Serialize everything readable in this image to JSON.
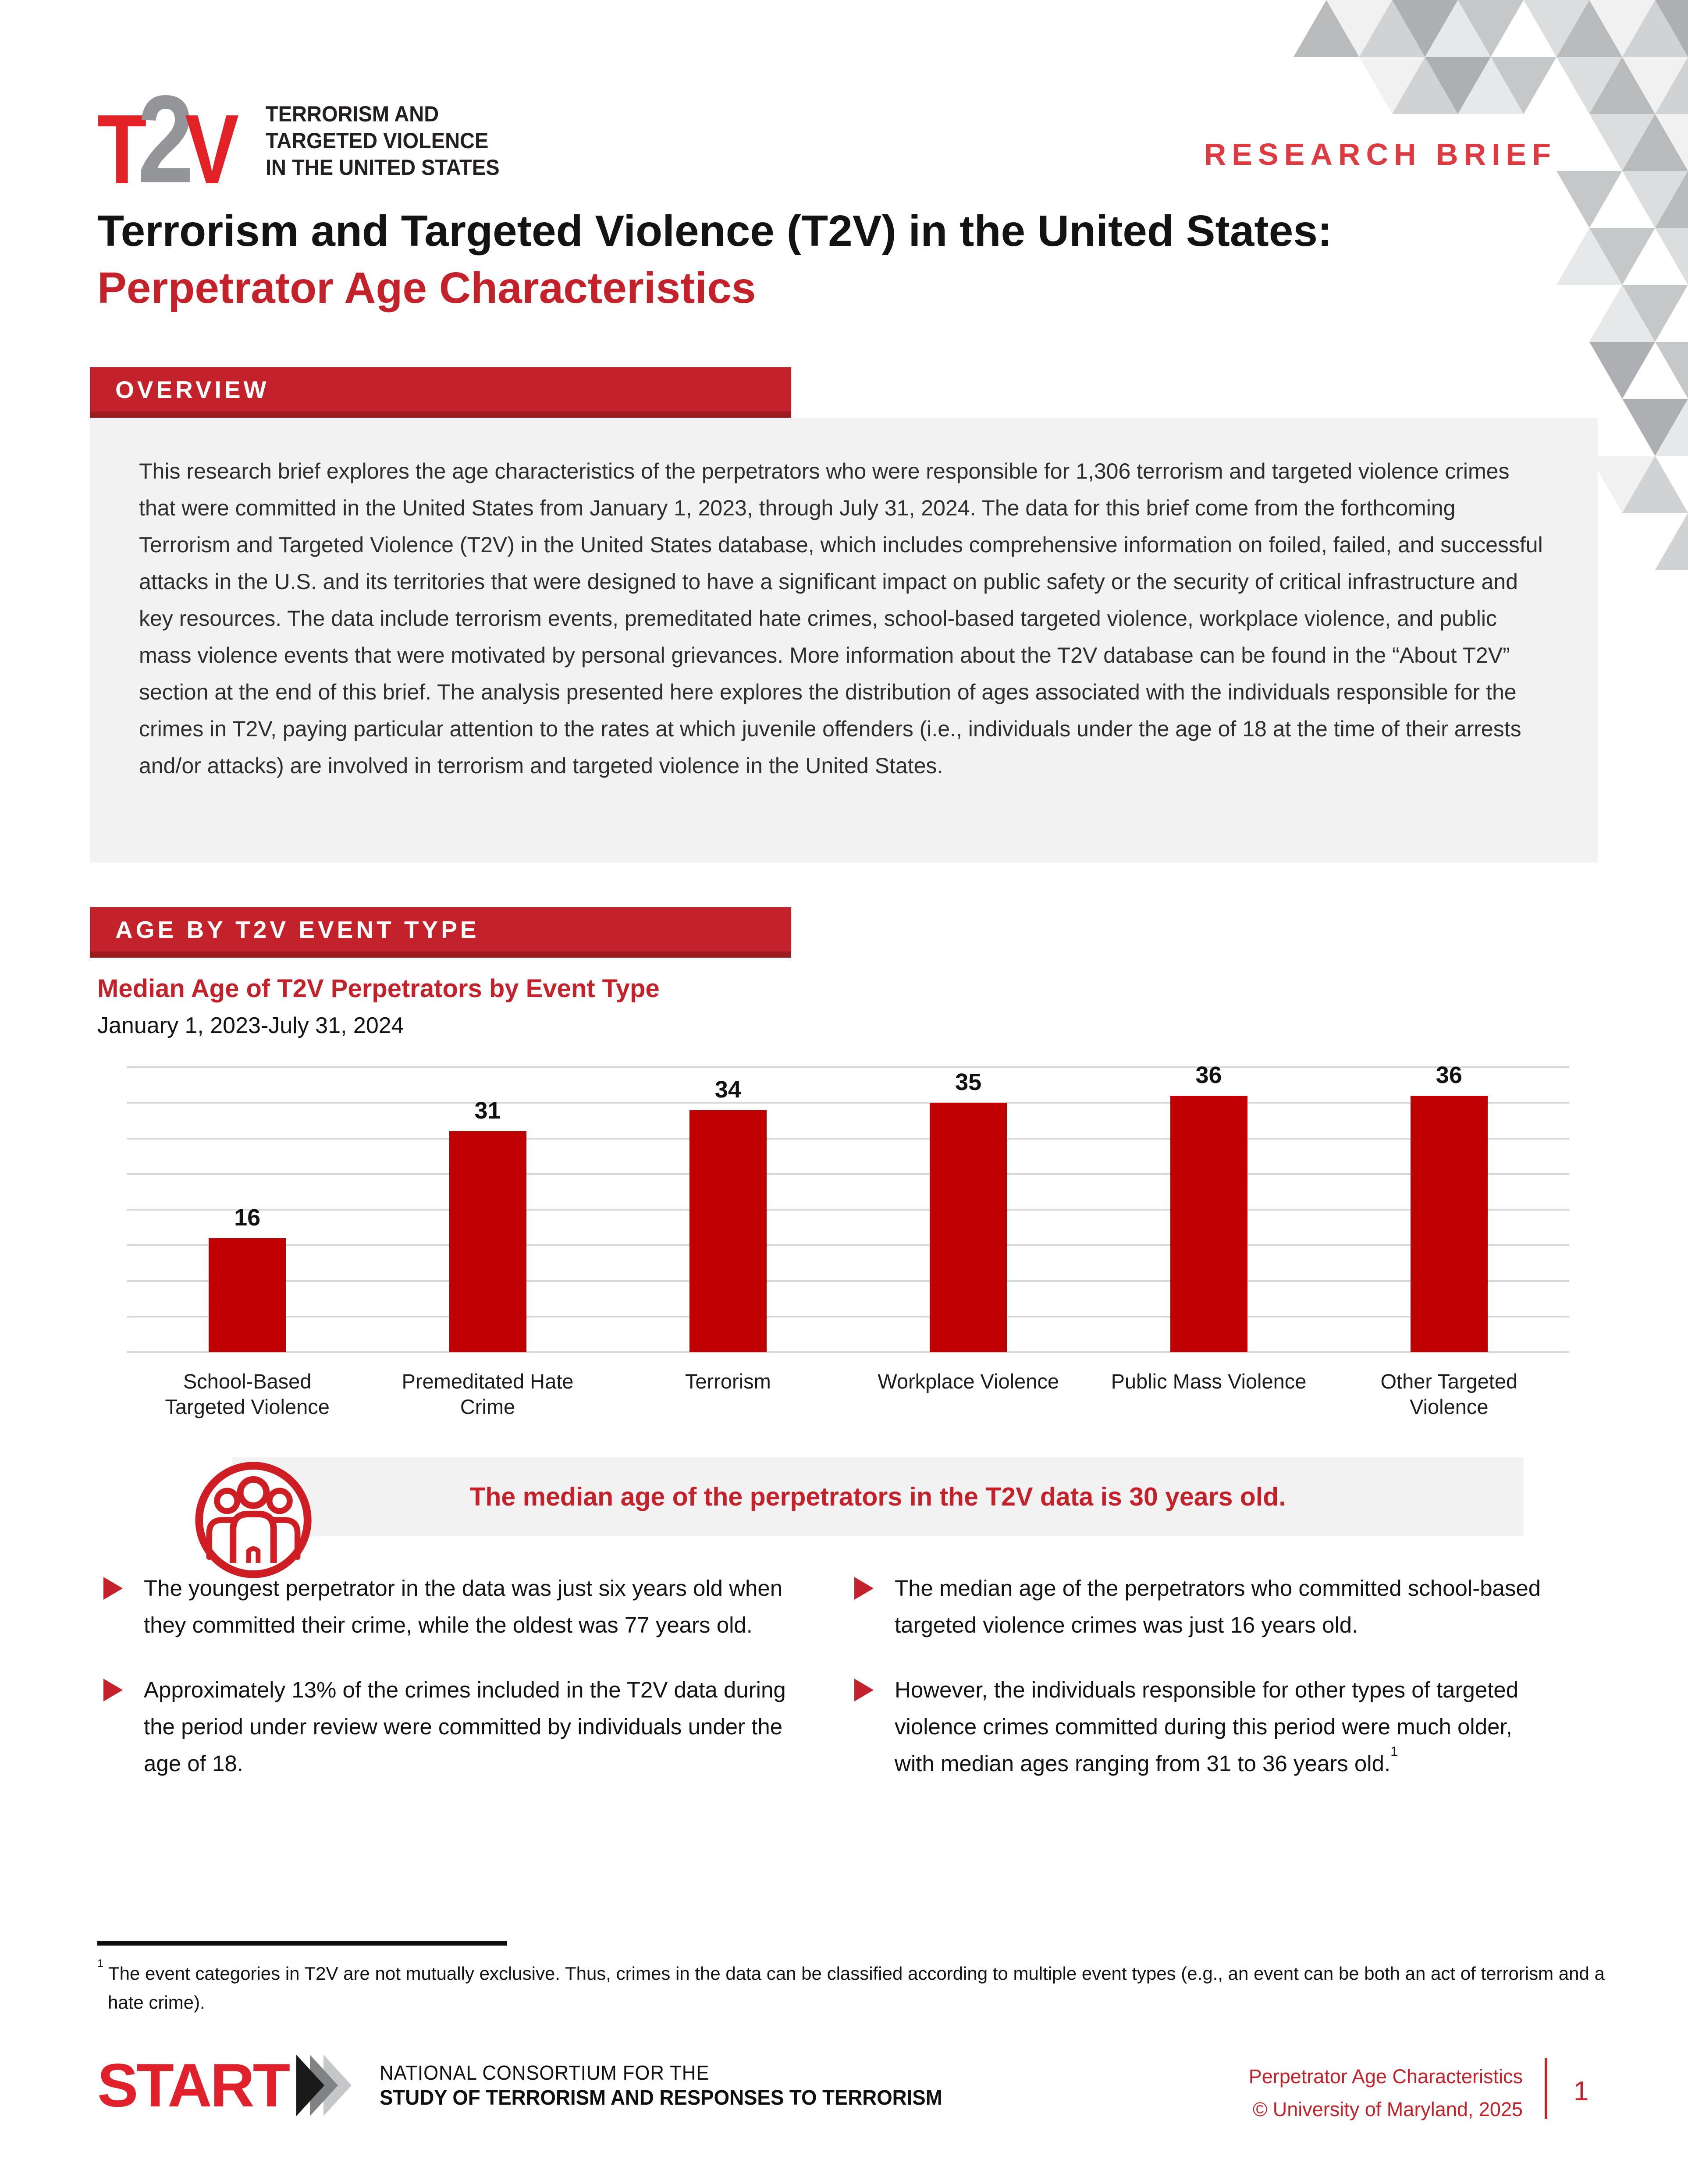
{
  "colors": {
    "brand_red": "#C3222A",
    "brand_red_dark": "#9C1B21",
    "kicker_red": "#DC3B41",
    "bar_red": "#C00000",
    "logo_red": "#E32228",
    "logo_gray": "#939598",
    "start_red": "#E0202A",
    "box_gray": "#F2F2F2",
    "gridline": "#D8D8D8",
    "text_dark": "#131313"
  },
  "logo": {
    "t": "T",
    "two": "2",
    "v": "V",
    "line1": "TERRORISM AND",
    "line2": "TARGETED VIOLENCE",
    "line3": "IN THE UNITED STATES"
  },
  "header": {
    "kicker": "RESEARCH BRIEF",
    "title_black": "Terrorism and Targeted Violence (T2V) in the United States:",
    "title_red": "Perpetrator Age Characteristics"
  },
  "overview": {
    "heading": "OVERVIEW",
    "body": "This research brief explores the age characteristics of the perpetrators who were responsible for 1,306 terrorism and targeted violence crimes that were committed in the United States from January 1, 2023, through July 31, 2024. The data for this brief come from the forthcoming Terrorism and Targeted Violence (T2V) in the United States database, which includes comprehensive information on foiled, failed, and successful attacks in the U.S. and its territories that were designed to have a significant impact on public safety or the security of critical infrastructure and key resources. The data include terrorism events, premeditated hate crimes, school-based targeted violence, workplace violence, and public mass violence events that were motivated by personal grievances. More information about the T2V database can be found in the “About T2V” section at the end of this brief. The analysis presented here explores the distribution of ages associated with the individuals responsible for the crimes in T2V, paying particular attention to the rates at which juvenile offenders (i.e., individuals under the age of 18 at the time of their arrests and/or attacks) are involved in terrorism and targeted violence in the United States."
  },
  "age_section": {
    "heading": "AGE BY T2V EVENT TYPE"
  },
  "chart_data": {
    "type": "bar",
    "title": "Median Age of T2V Perpetrators by Event Type",
    "subtitle": "January 1, 2023-July 31, 2024",
    "categories": [
      "School-Based\nTargeted Violence",
      "Premeditated Hate\nCrime",
      "Terrorism",
      "Workplace Violence",
      "Public Mass Violence",
      "Other Targeted\nViolence"
    ],
    "values": [
      16,
      31,
      34,
      35,
      36,
      36
    ],
    "ylim": [
      0,
      40
    ],
    "gridline_step": 5,
    "grid": "horizontal",
    "legend": "none",
    "value_labels": true,
    "bar_color": "#C00000"
  },
  "callout": {
    "icon": "people-group-icon",
    "text": "The median age of the perpetrators in the T2V data is 30 years old."
  },
  "bullets": {
    "left": [
      {
        "text": "The youngest perpetrator in the data was just six years old when they committed their crime, while the oldest was 77 years old."
      },
      {
        "text": "Approximately 13% of the crimes included in the T2V data during the period under review were committed by individuals under the age of 18."
      }
    ],
    "right": [
      {
        "text": "The median age of the perpetrators who committed school-based targeted violence crimes was just 16 years old."
      },
      {
        "text": "However, the individuals responsible for other types of targeted violence crimes committed during this period were much older, with median ages ranging from 31 to 36 years old.",
        "sup": "1"
      }
    ]
  },
  "footnote": {
    "marker": "1",
    "text": " The event categories in T2V are not mutually exclusive. Thus, crimes in the data can be classified according to multiple event types (e.g., an event can be both an act of terrorism and a hate crime)."
  },
  "footer": {
    "start_word": "START",
    "consortium_line1": "NATIONAL CONSORTIUM FOR THE",
    "consortium_line2": "STUDY OF TERRORISM AND RESPONSES TO TERRORISM",
    "doc_title": "Perpetrator Age Characteristics",
    "copyright": "© University of Maryland, 2025",
    "page_number": "1"
  },
  "mosaic": {
    "palette": [
      "#ffffff",
      "#f1f1f2",
      "#e7e8e9",
      "#dcddde",
      "#d1d2d4",
      "#c6c7c9",
      "#b9babc",
      "#aeafb2"
    ]
  }
}
